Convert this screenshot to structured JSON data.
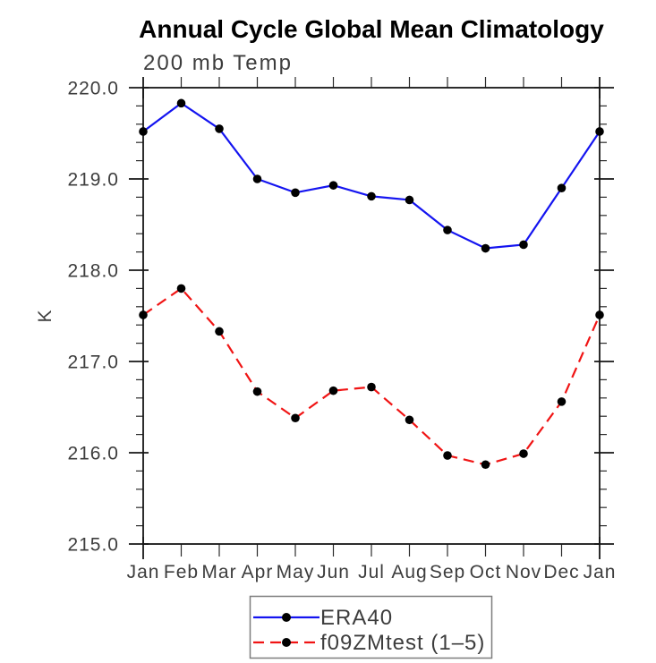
{
  "chart_data": {
    "type": "line",
    "title": "Annual Cycle Global Mean Climatology",
    "subtitle": "200 mb Temp",
    "ylabel": "K",
    "categories": [
      "Jan",
      "Feb",
      "Mar",
      "Apr",
      "May",
      "Jun",
      "Jul",
      "Aug",
      "Sep",
      "Oct",
      "Nov",
      "Dec",
      "Jan"
    ],
    "ylim": [
      215.0,
      220.0
    ],
    "y_major_step": 1.0,
    "y_minor_step": 0.2,
    "y_tick_labels": [
      "220.0",
      "219.0",
      "218.0",
      "217.0",
      "216.0",
      "215.0"
    ],
    "grid": false,
    "legend_position": "bottom-center",
    "series": [
      {
        "name": "ERA40",
        "color": "#1414f0",
        "line_style": "solid",
        "marker": "filled-circle",
        "marker_color": "#000000",
        "values": [
          219.52,
          219.83,
          219.55,
          219.0,
          218.85,
          218.93,
          218.81,
          218.77,
          218.44,
          218.24,
          218.28,
          218.9,
          219.52
        ]
      },
      {
        "name": "f09ZMtest (1–5)",
        "color": "#f01414",
        "line_style": "dashed",
        "marker": "filled-circle",
        "marker_color": "#000000",
        "values": [
          217.51,
          217.8,
          217.33,
          216.67,
          216.38,
          216.68,
          216.72,
          216.36,
          215.97,
          215.87,
          215.99,
          216.56,
          217.51
        ]
      }
    ]
  }
}
